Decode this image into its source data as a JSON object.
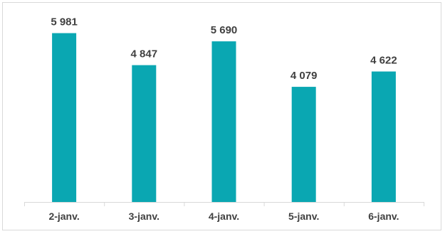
{
  "chart_data": {
    "type": "bar",
    "categories": [
      "2-janv.",
      "3-janv.",
      "4-janv.",
      "5-janv.",
      "6-janv."
    ],
    "values": [
      5981,
      4847,
      5690,
      4079,
      4622
    ],
    "value_labels": [
      "5 981",
      "4 847",
      "5 690",
      "4 079",
      "4 622"
    ],
    "ylim": [
      0,
      6600
    ],
    "grid": false,
    "title": "",
    "xlabel": "",
    "ylabel": "",
    "colors": {
      "bar": "#0AA7B2",
      "text": "#404040",
      "axis": "#d9d9d9"
    }
  }
}
